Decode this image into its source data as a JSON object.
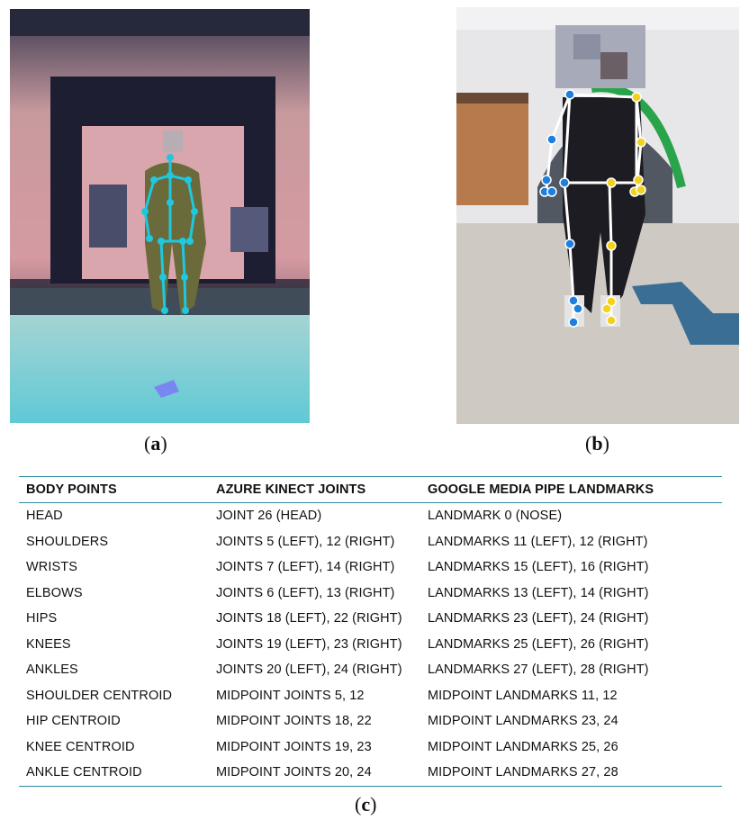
{
  "captions": {
    "a": "a",
    "b": "b",
    "c": "c"
  },
  "table": {
    "headers": [
      "BODY POINTS",
      "AZURE KINECT JOINTS",
      "GOOGLE MEDIA PIPE LANDMARKS"
    ],
    "rows": [
      [
        "HEAD",
        "JOINT 26 (HEAD)",
        "LANDMARK 0 (NOSE)"
      ],
      [
        "SHOULDERS",
        "JOINTS 5 (LEFT), 12 (RIGHT)",
        "LANDMARKS 11 (LEFT), 12 (RIGHT)"
      ],
      [
        "WRISTS",
        "JOINTS 7 (LEFT), 14 (RIGHT)",
        "LANDMARKS 15 (LEFT), 16 (RIGHT)"
      ],
      [
        "ELBOWS",
        "JOINTS 6 (LEFT), 13 (RIGHT)",
        "LANDMARKS 13 (LEFT), 14 (RIGHT)"
      ],
      [
        "HIPS",
        "JOINTS 18 (LEFT), 22 (RIGHT)",
        "LANDMARKS 23 (LEFT), 24 (RIGHT)"
      ],
      [
        "KNEES",
        "JOINTS 19 (LEFT), 23 (RIGHT)",
        "LANDMARKS 25 (LEFT), 26 (RIGHT)"
      ],
      [
        "ANKLES",
        "JOINTS 20 (LEFT), 24 (RIGHT)",
        "LANDMARKS 27 (LEFT), 28 (RIGHT)"
      ],
      [
        "SHOULDER CENTROID",
        "MIDPOINT JOINTS 5, 12",
        "MIDPOINT LANDMARKS 11, 12"
      ],
      [
        "HIP CENTROID",
        "MIDPOINT JOINTS 18, 22",
        "MIDPOINT LANDMARKS 23, 24"
      ],
      [
        "KNEE CENTROID",
        "MIDPOINT JOINTS 19, 23",
        "MIDPOINT LANDMARKS 25, 26"
      ],
      [
        "ANKLE CENTROID",
        "MIDPOINT JOINTS 20, 24",
        "MIDPOINT LANDMARKS 27, 28"
      ]
    ]
  },
  "colors": {
    "table_rule": "#2a8aa3",
    "kinect_skeleton": "#1ec8e0",
    "mediapipe_left": "#1f7fe0",
    "mediapipe_right": "#f2d21a",
    "mediapipe_bones": "#ffffff"
  }
}
